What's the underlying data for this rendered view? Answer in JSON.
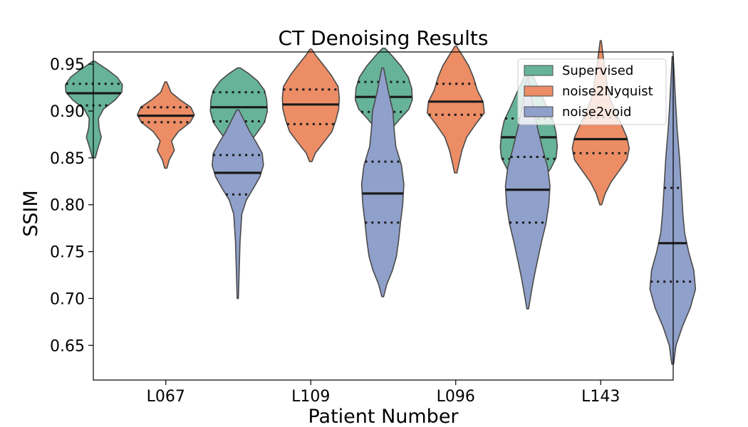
{
  "chart_data": {
    "type": "violin",
    "title": "CT Denoising Results",
    "xlabel": "Patient Number",
    "ylabel": "SSIM",
    "categories": [
      "L067",
      "L109",
      "L096",
      "L143"
    ],
    "ylim": [
      0.613,
      0.963
    ],
    "yticks": [
      0.65,
      0.7,
      0.75,
      0.8,
      0.85,
      0.9,
      0.95
    ],
    "ytick_labels": [
      "0.65",
      "0.70",
      "0.75",
      "0.80",
      "0.85",
      "0.90",
      "0.95"
    ],
    "legend_position": "top-right",
    "grid": false,
    "series": [
      {
        "name": "Supervised",
        "color": "#66b39a",
        "violins": [
          {
            "category": "L067",
            "min": 0.85,
            "max": 0.953,
            "q1": 0.906,
            "median": 0.919,
            "q3": 0.929,
            "profile": [
              [
                0.85,
                0.05
              ],
              [
                0.86,
                0.14
              ],
              [
                0.872,
                0.26
              ],
              [
                0.882,
                0.18
              ],
              [
                0.892,
                0.16
              ],
              [
                0.902,
                0.34
              ],
              [
                0.912,
                0.75
              ],
              [
                0.92,
                0.98
              ],
              [
                0.928,
                1.0
              ],
              [
                0.936,
                0.82
              ],
              [
                0.944,
                0.48
              ],
              [
                0.95,
                0.18
              ],
              [
                0.953,
                0.04
              ]
            ]
          },
          {
            "category": "L109",
            "min": 0.796,
            "max": 0.946,
            "q1": 0.889,
            "median": 0.904,
            "q3": 0.92,
            "profile": [
              [
                0.796,
                0.02
              ],
              [
                0.815,
                0.06
              ],
              [
                0.832,
                0.1
              ],
              [
                0.85,
                0.18
              ],
              [
                0.865,
                0.34
              ],
              [
                0.876,
                0.62
              ],
              [
                0.888,
                0.9
              ],
              [
                0.9,
                1.0
              ],
              [
                0.912,
                0.98
              ],
              [
                0.922,
                0.9
              ],
              [
                0.932,
                0.66
              ],
              [
                0.94,
                0.34
              ],
              [
                0.946,
                0.05
              ]
            ]
          },
          {
            "category": "L096",
            "min": 0.841,
            "max": 0.967,
            "q1": 0.899,
            "median": 0.915,
            "q3": 0.931,
            "profile": [
              [
                0.841,
                0.04
              ],
              [
                0.855,
                0.1
              ],
              [
                0.868,
                0.14
              ],
              [
                0.88,
                0.24
              ],
              [
                0.892,
                0.58
              ],
              [
                0.902,
                0.88
              ],
              [
                0.912,
                1.0
              ],
              [
                0.924,
                0.98
              ],
              [
                0.936,
                0.86
              ],
              [
                0.948,
                0.6
              ],
              [
                0.958,
                0.32
              ],
              [
                0.967,
                0.04
              ]
            ]
          },
          {
            "category": "L143",
            "min": 0.802,
            "max": 0.946,
            "q1": 0.849,
            "median": 0.872,
            "q3": 0.892,
            "profile": [
              [
                0.802,
                0.04
              ],
              [
                0.812,
                0.16
              ],
              [
                0.824,
                0.4
              ],
              [
                0.838,
                0.76
              ],
              [
                0.85,
                0.96
              ],
              [
                0.862,
                1.0
              ],
              [
                0.876,
                0.96
              ],
              [
                0.89,
                0.86
              ],
              [
                0.904,
                0.64
              ],
              [
                0.918,
                0.44
              ],
              [
                0.93,
                0.26
              ],
              [
                0.94,
                0.12
              ],
              [
                0.946,
                0.03
              ]
            ]
          }
        ]
      },
      {
        "name": "noise2Nyquist",
        "color": "#ec8d66",
        "violins": [
          {
            "category": "L067",
            "min": 0.839,
            "max": 0.931,
            "q1": 0.888,
            "median": 0.895,
            "q3": 0.904,
            "profile": [
              [
                0.839,
                0.04
              ],
              [
                0.848,
                0.12
              ],
              [
                0.858,
                0.3
              ],
              [
                0.868,
                0.2
              ],
              [
                0.878,
                0.44
              ],
              [
                0.888,
                0.86
              ],
              [
                0.896,
                1.0
              ],
              [
                0.904,
                0.88
              ],
              [
                0.912,
                0.5
              ],
              [
                0.92,
                0.18
              ],
              [
                0.926,
                0.1
              ],
              [
                0.931,
                0.03
              ]
            ]
          },
          {
            "category": "L109",
            "min": 0.846,
            "max": 0.966,
            "q1": 0.886,
            "median": 0.907,
            "q3": 0.923,
            "profile": [
              [
                0.846,
                0.04
              ],
              [
                0.855,
                0.16
              ],
              [
                0.866,
                0.44
              ],
              [
                0.878,
                0.74
              ],
              [
                0.89,
                0.88
              ],
              [
                0.902,
                0.98
              ],
              [
                0.914,
                1.0
              ],
              [
                0.926,
                0.96
              ],
              [
                0.938,
                0.72
              ],
              [
                0.95,
                0.42
              ],
              [
                0.96,
                0.16
              ],
              [
                0.966,
                0.03
              ]
            ]
          },
          {
            "category": "L096",
            "min": 0.834,
            "max": 0.969,
            "q1": 0.896,
            "median": 0.91,
            "q3": 0.929,
            "profile": [
              [
                0.834,
                0.04
              ],
              [
                0.845,
                0.12
              ],
              [
                0.858,
                0.22
              ],
              [
                0.872,
                0.38
              ],
              [
                0.886,
                0.7
              ],
              [
                0.898,
                1.0
              ],
              [
                0.91,
                0.96
              ],
              [
                0.922,
                0.76
              ],
              [
                0.936,
                0.62
              ],
              [
                0.948,
                0.46
              ],
              [
                0.958,
                0.26
              ],
              [
                0.969,
                0.03
              ]
            ]
          },
          {
            "category": "L143",
            "min": 0.8,
            "max": 0.975,
            "q1": 0.855,
            "median": 0.87,
            "q3": 0.893,
            "profile": [
              [
                0.8,
                0.03
              ],
              [
                0.812,
                0.16
              ],
              [
                0.824,
                0.36
              ],
              [
                0.836,
                0.64
              ],
              [
                0.848,
                0.92
              ],
              [
                0.86,
                1.0
              ],
              [
                0.872,
                0.92
              ],
              [
                0.886,
                0.72
              ],
              [
                0.9,
                0.5
              ],
              [
                0.914,
                0.32
              ],
              [
                0.93,
                0.22
              ],
              [
                0.946,
                0.14
              ],
              [
                0.96,
                0.08
              ],
              [
                0.975,
                0.02
              ]
            ]
          }
        ]
      },
      {
        "name": "noise2void",
        "color": "#8fa0ca",
        "violins": [
          {
            "category": "L067",
            "min": 0.7,
            "max": 0.901,
            "q1": 0.811,
            "median": 0.834,
            "q3": 0.853,
            "profile": [
              [
                0.7,
                0.02
              ],
              [
                0.73,
                0.05
              ],
              [
                0.76,
                0.08
              ],
              [
                0.79,
                0.14
              ],
              [
                0.805,
                0.3
              ],
              [
                0.818,
                0.56
              ],
              [
                0.83,
                0.78
              ],
              [
                0.842,
                0.9
              ],
              [
                0.855,
                0.86
              ],
              [
                0.866,
                0.66
              ],
              [
                0.878,
                0.42
              ],
              [
                0.89,
                0.22
              ],
              [
                0.901,
                0.04
              ]
            ]
          },
          {
            "category": "L109",
            "min": 0.702,
            "max": 0.946,
            "q1": 0.781,
            "median": 0.812,
            "q3": 0.846,
            "profile": [
              [
                0.702,
                0.03
              ],
              [
                0.715,
                0.14
              ],
              [
                0.73,
                0.34
              ],
              [
                0.745,
                0.48
              ],
              [
                0.762,
                0.56
              ],
              [
                0.78,
                0.62
              ],
              [
                0.8,
                0.7
              ],
              [
                0.822,
                0.74
              ],
              [
                0.842,
                0.66
              ],
              [
                0.862,
                0.46
              ],
              [
                0.88,
                0.4
              ],
              [
                0.9,
                0.36
              ],
              [
                0.92,
                0.2
              ],
              [
                0.946,
                0.03
              ]
            ]
          },
          {
            "category": "L096",
            "min": 0.689,
            "max": 0.937,
            "q1": 0.781,
            "median": 0.816,
            "q3": 0.851,
            "profile": [
              [
                0.689,
                0.03
              ],
              [
                0.705,
                0.12
              ],
              [
                0.722,
                0.22
              ],
              [
                0.74,
                0.34
              ],
              [
                0.76,
                0.48
              ],
              [
                0.78,
                0.64
              ],
              [
                0.8,
                0.74
              ],
              [
                0.82,
                0.78
              ],
              [
                0.84,
                0.7
              ],
              [
                0.86,
                0.52
              ],
              [
                0.88,
                0.36
              ],
              [
                0.9,
                0.22
              ],
              [
                0.92,
                0.1
              ],
              [
                0.937,
                0.02
              ]
            ]
          },
          {
            "category": "L143",
            "min": 0.63,
            "max": 0.958,
            "q1": 0.718,
            "median": 0.759,
            "q3": 0.818,
            "profile": [
              [
                0.63,
                0.03
              ],
              [
                0.65,
                0.12
              ],
              [
                0.67,
                0.34
              ],
              [
                0.69,
                0.62
              ],
              [
                0.71,
                0.8
              ],
              [
                0.73,
                0.74
              ],
              [
                0.75,
                0.56
              ],
              [
                0.77,
                0.42
              ],
              [
                0.79,
                0.36
              ],
              [
                0.82,
                0.3
              ],
              [
                0.85,
                0.24
              ],
              [
                0.88,
                0.16
              ],
              [
                0.91,
                0.1
              ],
              [
                0.94,
                0.05
              ],
              [
                0.958,
                0.02
              ]
            ]
          }
        ]
      }
    ]
  }
}
